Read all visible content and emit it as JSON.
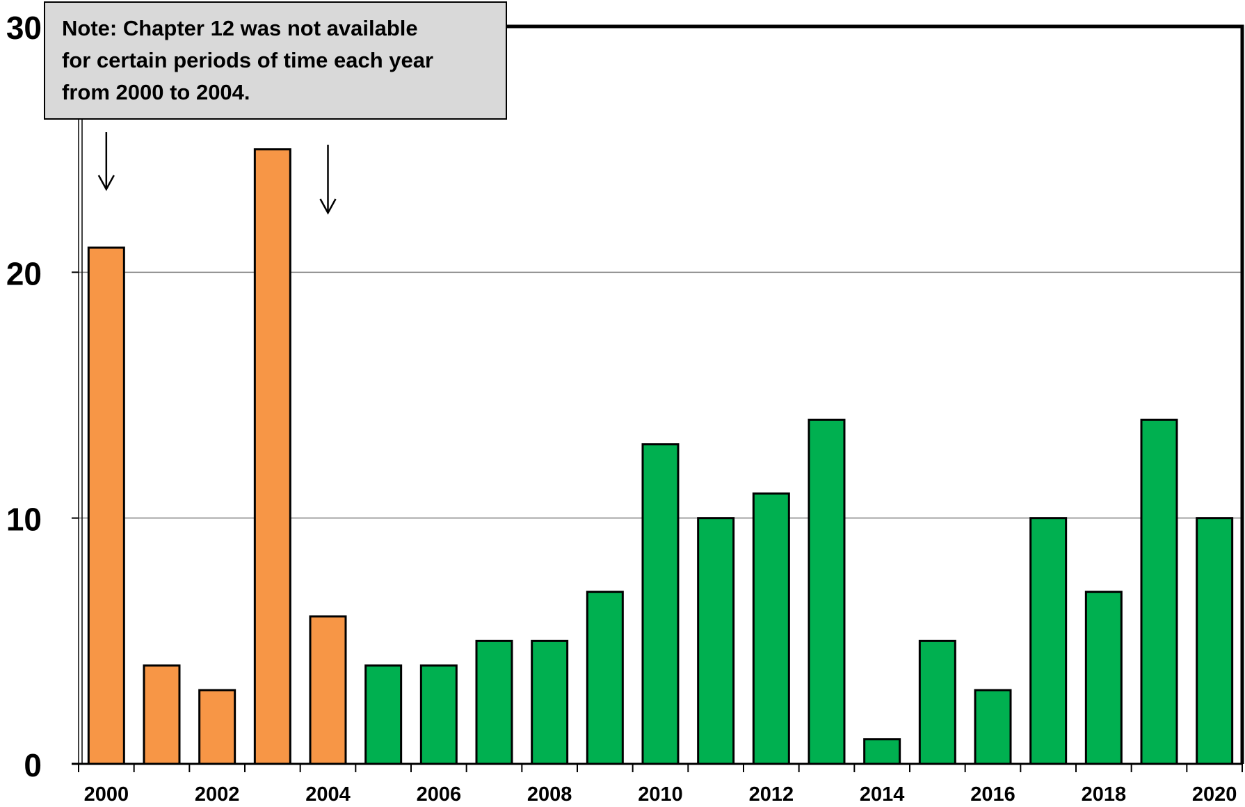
{
  "chart_data": {
    "type": "bar",
    "categories": [
      "2000",
      "2001",
      "2002",
      "2003",
      "2004",
      "2005",
      "2006",
      "2007",
      "2008",
      "2009",
      "2010",
      "2011",
      "2012",
      "2013",
      "2014",
      "2015",
      "2016",
      "2017",
      "2018",
      "2019",
      "2020"
    ],
    "x_tick_labels": [
      "2000",
      "2002",
      "2004",
      "2006",
      "2008",
      "2010",
      "2012",
      "2014",
      "2016",
      "2018",
      "2020"
    ],
    "values": [
      21,
      4,
      3,
      25,
      6,
      4,
      4,
      5,
      5,
      7,
      13,
      10,
      11,
      14,
      1,
      5,
      3,
      10,
      7,
      14,
      10
    ],
    "y_ticks": [
      "0",
      "10",
      "20",
      "30"
    ],
    "ylim": [
      0,
      30
    ],
    "title": "",
    "xlabel": "",
    "ylabel": "",
    "grid": true,
    "legend": "none",
    "colors": {
      "period_2000_2004": "#f79646",
      "period_2005_2020": "#00b050",
      "bar_outline": "#000000",
      "gridline": "#808080"
    },
    "highlight_categories": [
      "2000",
      "2001",
      "2002",
      "2003",
      "2004"
    ],
    "annotation": {
      "text": "Note: Chapter 12 was not available\n for certain periods of time each year\nfrom 2000 to 2004.",
      "arrow_targets": [
        "2000",
        "2004"
      ]
    }
  }
}
